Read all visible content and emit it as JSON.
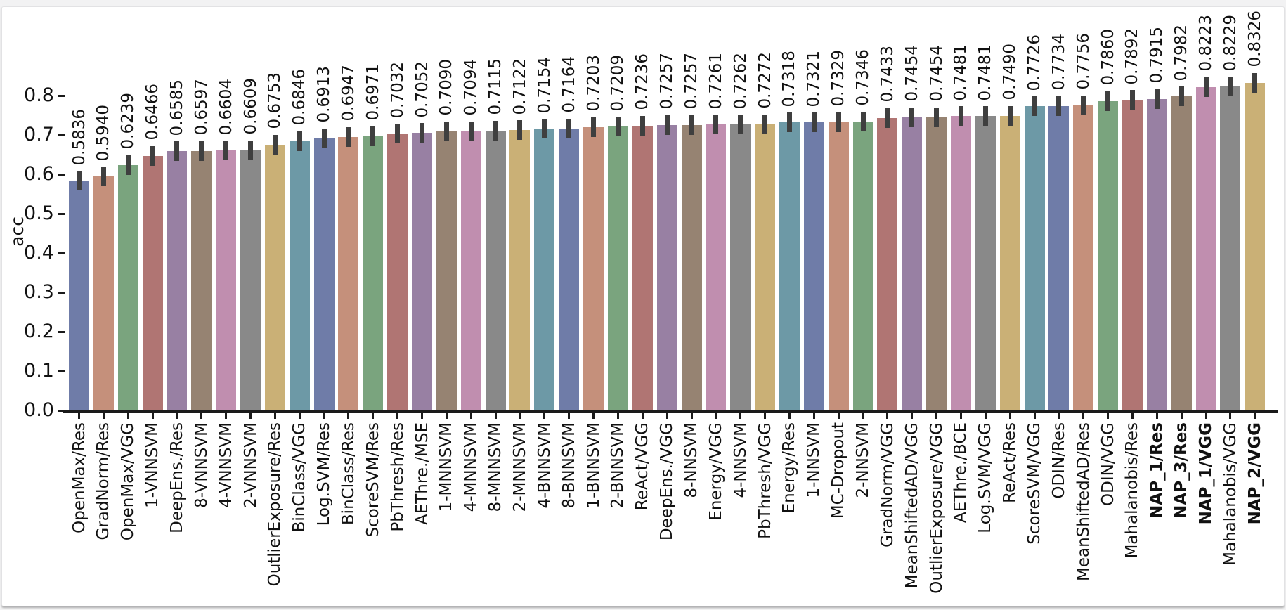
{
  "figure": {
    "frame_background": "#f2f2f3",
    "panel_background": "#ffffff"
  },
  "chart_data": {
    "type": "bar",
    "title": "",
    "xlabel": "",
    "ylabel": "acc",
    "yticks": [
      0.0,
      0.1,
      0.2,
      0.3,
      0.4,
      0.5,
      0.6,
      0.7,
      0.8
    ],
    "ylim": [
      0.0,
      0.9
    ],
    "grid": false,
    "legend": null,
    "bar_value_labels_shown": true,
    "value_label_decimals": 4,
    "categories": [
      "OpenMax/Res",
      "GradNorm/Res",
      "OpenMax/VGG",
      "1-VNNSVM",
      "DeepEns./Res",
      "8-VNNSVM",
      "4-VNNSVM",
      "2-VNNSVM",
      "OutlierExposure/Res",
      "BinClass/VGG",
      "Log.SVM/Res",
      "BinClass/Res",
      "ScoreSVM/Res",
      "PbThresh/Res",
      "AEThre./MSE",
      "1-MNNSVM",
      "4-MNNSVM",
      "8-MNNSVM",
      "2-MNNSVM",
      "4-BNNSVM",
      "8-BNNSVM",
      "1-BNNSVM",
      "2-BNNSVM",
      "ReAct/VGG",
      "DeepEns./VGG",
      "8-NNSVM",
      "Energy/VGG",
      "4-NNSVM",
      "PbThresh/VGG",
      "Energy/Res",
      "1-NNSVM",
      "MC-Dropout",
      "2-NNSVM",
      "GradNorm/VGG",
      "MeanShiftedAD/VGG",
      "OutlierExposure/VGG",
      "AEThre./BCE",
      "Log.SVM/VGG",
      "ReAct/Res",
      "ScoreSVM/VGG",
      "ODIN/Res",
      "MeanShiftedAD/Res",
      "ODIN/VGG",
      "Mahalanobis/Res",
      "NAP_1/Res",
      "NAP_3/Res",
      "NAP_1/VGG",
      "Mahalanobis/VGG",
      "NAP_2/VGG"
    ],
    "values": [
      0.5836,
      0.594,
      0.6239,
      0.6466,
      0.6585,
      0.6597,
      0.6604,
      0.6609,
      0.6753,
      0.6846,
      0.6913,
      0.6947,
      0.6971,
      0.7032,
      0.7052,
      0.709,
      0.7094,
      0.7115,
      0.7122,
      0.7154,
      0.7164,
      0.7203,
      0.7209,
      0.7236,
      0.7257,
      0.7257,
      0.7261,
      0.7262,
      0.7272,
      0.7318,
      0.7321,
      0.7329,
      0.7346,
      0.7433,
      0.7454,
      0.7454,
      0.7481,
      0.7481,
      0.749,
      0.7726,
      0.7734,
      0.7756,
      0.786,
      0.7892,
      0.7915,
      0.7982,
      0.8223,
      0.8229,
      0.8326
    ],
    "error_bars_estimated": 0.025,
    "bold_categories": [
      "NAP_1/Res",
      "NAP_3/Res",
      "NAP_1/VGG",
      "NAP_2/VGG"
    ],
    "palette": [
      "#6F7CA8",
      "#C5907B",
      "#7AA47E",
      "#B07573",
      "#9880A3",
      "#968372",
      "#C08EAF",
      "#898989",
      "#CAB076",
      "#6D99A6"
    ],
    "error_bar_color": "#3f3f3f",
    "axis_color": "#1a1a1a",
    "text_color": "#111111"
  }
}
